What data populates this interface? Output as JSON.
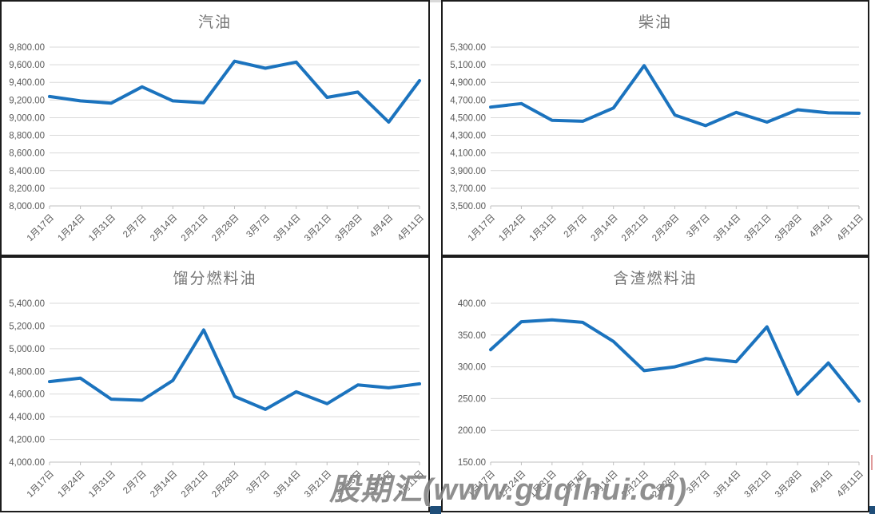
{
  "watermark": {
    "text": "股期汇(www.guqihui.cn)"
  },
  "colors": {
    "line": "#1B73BE",
    "gridline": "#D9D9D9",
    "axis": "#BFBFBF",
    "tick_label": "#595959",
    "title": "#757575",
    "panel_border": "#1C1C1C",
    "bottom_bar": "#1F4E79",
    "top_gap_strip": "#D9D9D9",
    "edge_mark": "#E09B9B"
  },
  "chart_data": [
    {
      "type": "line",
      "title": "汽油",
      "categories": [
        "1月17日",
        "1月24日",
        "1月31日",
        "2月7日",
        "2月14日",
        "2月21日",
        "2月28日",
        "3月7日",
        "3月14日",
        "3月21日",
        "3月28日",
        "4月4日",
        "4月11日"
      ],
      "values": [
        9240,
        9190,
        9165,
        9350,
        9190,
        9170,
        9640,
        9560,
        9630,
        9230,
        9290,
        8950,
        9420
      ],
      "ylim": [
        8000,
        9800
      ],
      "ystep": 200,
      "ytick_labels": [
        "9,800.00",
        "9,600.00",
        "9,400.00",
        "9,200.00",
        "9,000.00",
        "8,800.00",
        "8,600.00",
        "8,400.00",
        "8,200.00",
        "8,000.00"
      ],
      "xlabel": "",
      "ylabel": "",
      "grid": true,
      "legend": "none"
    },
    {
      "type": "line",
      "title": "柴油",
      "categories": [
        "1月17日",
        "1月24日",
        "1月31日",
        "2月7日",
        "2月14日",
        "2月21日",
        "2月28日",
        "3月7日",
        "3月14日",
        "3月21日",
        "3月28日",
        "4月4日",
        "4月11日"
      ],
      "values": [
        4620,
        4660,
        4470,
        4460,
        4610,
        5090,
        4530,
        4410,
        4560,
        4450,
        4590,
        4555,
        4550
      ],
      "ylim": [
        3500,
        5300
      ],
      "ystep": 200,
      "ytick_labels": [
        "5,300.00",
        "5,100.00",
        "4,900.00",
        "4,700.00",
        "4,500.00",
        "4,300.00",
        "4,100.00",
        "3,900.00",
        "3,700.00",
        "3,500.00"
      ],
      "xlabel": "",
      "ylabel": "",
      "grid": true,
      "legend": "none"
    },
    {
      "type": "line",
      "title": "馏分燃料油",
      "categories": [
        "1月17日",
        "1月24日",
        "1月31日",
        "2月7日",
        "2月14日",
        "2月21日",
        "2月28日",
        "3月7日",
        "3月14日",
        "3月21日",
        "3月28日",
        "4月4日",
        "4月11日"
      ],
      "values": [
        4710,
        4740,
        4555,
        4545,
        4720,
        5165,
        4580,
        4465,
        4620,
        4515,
        4680,
        4655,
        4690
      ],
      "ylim": [
        4000,
        5400
      ],
      "ystep": 200,
      "ytick_labels": [
        "5,400.00",
        "5,200.00",
        "5,000.00",
        "4,800.00",
        "4,600.00",
        "4,400.00",
        "4,200.00",
        "4,000.00"
      ],
      "xlabel": "",
      "ylabel": "",
      "grid": true,
      "legend": "none"
    },
    {
      "type": "line",
      "title": "含渣燃料油",
      "categories": [
        "1月17日",
        "1月24日",
        "1月31日",
        "2月7日",
        "2月14日",
        "2月21日",
        "2月28日",
        "3月7日",
        "3月14日",
        "3月21日",
        "3月28日",
        "4月4日",
        "4月11日"
      ],
      "values": [
        327,
        371,
        374,
        370,
        340,
        294,
        300,
        313,
        308,
        363,
        257,
        306,
        246
      ],
      "ylim": [
        150,
        400
      ],
      "ystep": 50,
      "ytick_labels": [
        "400.00",
        "350.00",
        "300.00",
        "250.00",
        "200.00",
        "150.00"
      ],
      "xlabel": "",
      "ylabel": "",
      "grid": true,
      "legend": "none"
    }
  ]
}
